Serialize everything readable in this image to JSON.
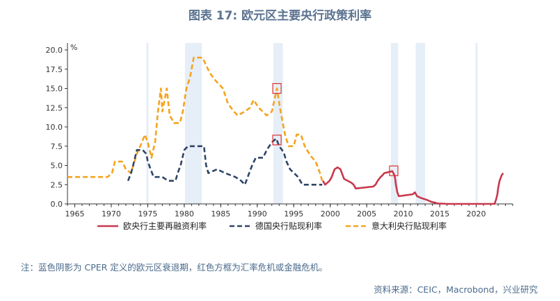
{
  "header": {
    "title": "图表 17: 欧元区主要央行政策利率"
  },
  "footer": {
    "note": "注：蓝色阴影为 CPER 定义的欧元区衰退期，红色方框为汇率危机或金融危机。",
    "source": "资料来源：CEIC，Macrobond，兴业研究"
  },
  "chart_data": {
    "type": "line",
    "title": "图表 17: 欧元区主要央行政策利率",
    "ylabel": "%",
    "xlabel": "",
    "xlim": [
      1964,
      2025
    ],
    "ylim": [
      0,
      20
    ],
    "x_ticks": [
      1965,
      1970,
      1975,
      1980,
      1985,
      1990,
      1995,
      2000,
      2005,
      2010,
      2015,
      2020
    ],
    "y_ticks": [
      "0.0",
      "2.5",
      "5.0",
      "7.5",
      "10.0",
      "12.5",
      "15.0",
      "17.5",
      "20.0"
    ],
    "grid": false,
    "legend_position": "bottom",
    "colors": {
      "ecb": "#c8374c",
      "germany": "#2e4566",
      "italy": "#f5a31e",
      "recession": "#e6eef7",
      "crisis_box": "#e03030"
    },
    "recession_periods": [
      [
        1974.8,
        1975.1
      ],
      [
        1980.1,
        1982.4
      ],
      [
        1992.2,
        1993.5
      ],
      [
        2008.3,
        2009.3
      ],
      [
        2011.7,
        2013.0
      ],
      [
        2019.9,
        2020.2
      ]
    ],
    "crisis_boxes": [
      {
        "x": 1992.7,
        "y": 15.0
      },
      {
        "x": 1992.7,
        "y": 8.3
      },
      {
        "x": 2008.7,
        "y": 4.3
      }
    ],
    "series": [
      {
        "name": "欧央行主要再融资利率",
        "style": "solid",
        "points": [
          [
            1999.0,
            3.0
          ],
          [
            1999.3,
            2.5
          ],
          [
            1999.9,
            3.0
          ],
          [
            2000.2,
            3.5
          ],
          [
            2000.4,
            4.0
          ],
          [
            2000.6,
            4.5
          ],
          [
            2001.0,
            4.75
          ],
          [
            2001.4,
            4.5
          ],
          [
            2001.7,
            3.75
          ],
          [
            2001.9,
            3.25
          ],
          [
            2002.9,
            2.75
          ],
          [
            2003.2,
            2.5
          ],
          [
            2003.5,
            2.0
          ],
          [
            2005.9,
            2.25
          ],
          [
            2006.2,
            2.5
          ],
          [
            2006.5,
            3.0
          ],
          [
            2006.9,
            3.5
          ],
          [
            2007.2,
            3.75
          ],
          [
            2007.4,
            4.0
          ],
          [
            2008.5,
            4.25
          ],
          [
            2008.8,
            3.75
          ],
          [
            2008.9,
            3.25
          ],
          [
            2009.0,
            2.5
          ],
          [
            2009.2,
            1.5
          ],
          [
            2009.4,
            1.0
          ],
          [
            2011.3,
            1.25
          ],
          [
            2011.6,
            1.5
          ],
          [
            2011.9,
            1.0
          ],
          [
            2012.5,
            0.75
          ],
          [
            2013.3,
            0.5
          ],
          [
            2013.9,
            0.25
          ],
          [
            2014.4,
            0.15
          ],
          [
            2014.7,
            0.05
          ],
          [
            2016.2,
            0.0
          ],
          [
            2022.5,
            0.0
          ],
          [
            2022.7,
            0.5
          ],
          [
            2022.9,
            1.25
          ],
          [
            2023.0,
            2.0
          ],
          [
            2023.2,
            3.0
          ],
          [
            2023.5,
            3.75
          ],
          [
            2023.7,
            4.0
          ]
        ]
      },
      {
        "name": "德国央行贴现利率",
        "style": "dashed",
        "points": [
          [
            1972.3,
            3.0
          ],
          [
            1972.7,
            4.0
          ],
          [
            1973.0,
            5.0
          ],
          [
            1973.5,
            7.0
          ],
          [
            1974.3,
            7.0
          ],
          [
            1974.8,
            6.5
          ],
          [
            1975.0,
            5.5
          ],
          [
            1975.4,
            4.5
          ],
          [
            1975.8,
            3.5
          ],
          [
            1977.0,
            3.5
          ],
          [
            1977.8,
            3.0
          ],
          [
            1978.8,
            3.0
          ],
          [
            1979.1,
            4.0
          ],
          [
            1979.5,
            5.0
          ],
          [
            1980.0,
            7.0
          ],
          [
            1980.5,
            7.5
          ],
          [
            1982.7,
            7.5
          ],
          [
            1983.0,
            5.0
          ],
          [
            1983.3,
            4.0
          ],
          [
            1984.5,
            4.5
          ],
          [
            1985.6,
            4.0
          ],
          [
            1987.0,
            3.5
          ],
          [
            1987.8,
            3.0
          ],
          [
            1988.3,
            2.5
          ],
          [
            1988.7,
            3.5
          ],
          [
            1989.3,
            5.0
          ],
          [
            1989.8,
            6.0
          ],
          [
            1990.8,
            6.0
          ],
          [
            1991.3,
            7.0
          ],
          [
            1992.0,
            8.0
          ],
          [
            1992.6,
            8.5
          ],
          [
            1993.0,
            7.5
          ],
          [
            1993.6,
            6.75
          ],
          [
            1994.0,
            5.5
          ],
          [
            1994.5,
            4.5
          ],
          [
            1995.6,
            3.5
          ],
          [
            1996.2,
            2.5
          ],
          [
            1998.9,
            2.5
          ]
        ]
      },
      {
        "name": "意大利央行贴现利率",
        "style": "dashed",
        "points": [
          [
            1964.0,
            3.5
          ],
          [
            1969.5,
            3.5
          ],
          [
            1970.1,
            4.0
          ],
          [
            1970.5,
            5.5
          ],
          [
            1971.5,
            5.5
          ],
          [
            1972.0,
            4.5
          ],
          [
            1972.7,
            4.0
          ],
          [
            1973.5,
            6.5
          ],
          [
            1974.2,
            8.0
          ],
          [
            1974.6,
            9.0
          ],
          [
            1975.0,
            8.0
          ],
          [
            1975.5,
            6.0
          ],
          [
            1976.0,
            8.0
          ],
          [
            1976.4,
            12.0
          ],
          [
            1976.8,
            15.0
          ],
          [
            1977.0,
            12.0
          ],
          [
            1977.6,
            15.0
          ],
          [
            1978.0,
            11.5
          ],
          [
            1978.6,
            10.5
          ],
          [
            1979.4,
            10.5
          ],
          [
            1979.8,
            12.0
          ],
          [
            1980.3,
            15.0
          ],
          [
            1980.8,
            16.5
          ],
          [
            1981.3,
            19.0
          ],
          [
            1982.5,
            19.0
          ],
          [
            1983.0,
            18.0
          ],
          [
            1983.5,
            17.0
          ],
          [
            1984.3,
            16.0
          ],
          [
            1985.3,
            15.0
          ],
          [
            1986.0,
            13.0
          ],
          [
            1986.8,
            12.0
          ],
          [
            1987.3,
            11.5
          ],
          [
            1988.3,
            12.0
          ],
          [
            1989.0,
            12.5
          ],
          [
            1989.5,
            13.5
          ],
          [
            1990.2,
            12.5
          ],
          [
            1991.3,
            11.5
          ],
          [
            1992.0,
            12.0
          ],
          [
            1992.7,
            15.0
          ],
          [
            1993.2,
            12.0
          ],
          [
            1993.8,
            9.0
          ],
          [
            1994.3,
            7.5
          ],
          [
            1995.0,
            7.5
          ],
          [
            1995.4,
            9.0
          ],
          [
            1996.0,
            9.0
          ],
          [
            1996.5,
            7.5
          ],
          [
            1997.3,
            6.25
          ],
          [
            1998.0,
            5.5
          ],
          [
            1998.6,
            4.0
          ],
          [
            1998.9,
            3.0
          ]
        ]
      }
    ]
  }
}
